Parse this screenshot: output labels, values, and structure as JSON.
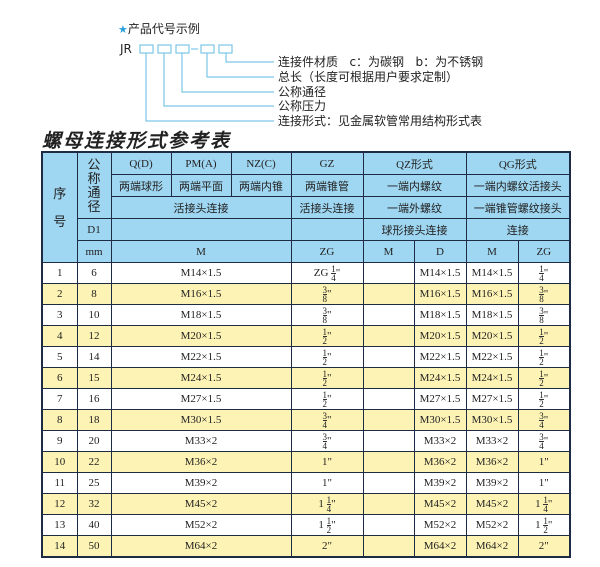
{
  "legend": {
    "title": "产品代号示例",
    "star_icon": "star-icon",
    "code_prefix": "JR",
    "code_dash": "-",
    "labels": [
      "连接件材质   c：为碳钢   b：为不锈钢",
      "总长（长度可根据用户要求定制）",
      "公称通径",
      "公称压力",
      "连接形式：见金属软管常用结构形式表"
    ]
  },
  "table_title": "螺母连接形式参考表",
  "header": {
    "seq": "序\n\n号",
    "dn": "公\n称\n通\n径",
    "r1": [
      "Q(D)",
      "PM(A)",
      "NZ(C)",
      "GZ",
      "QZ形式",
      "QG形式"
    ],
    "r2": [
      "两端球形",
      "两端平面",
      "两端内锥",
      "两端锥管",
      "一端内螺纹",
      "一端内螺纹活接头"
    ],
    "r3": [
      "活接头连接",
      "活接头连接",
      "一端外螺纹",
      "一端锥管螺纹接头"
    ],
    "r4": [
      "D1",
      "球形接头连接",
      "连接"
    ],
    "r5": [
      "mm",
      "M",
      "ZG",
      "M",
      "D",
      "M",
      "ZG"
    ]
  },
  "rows": [
    {
      "no": "1",
      "dn": "6",
      "m": "M14×1.5",
      "zg": {
        "pre": "ZG ",
        "num": "1",
        "den": "4"
      },
      "qz": "M14×1.5",
      "qgm": "M14×1.5",
      "qgzg": {
        "num": "1",
        "den": "4"
      }
    },
    {
      "no": "2",
      "dn": "8",
      "m": "M16×1.5",
      "zg": {
        "num": "3",
        "den": "8"
      },
      "qz": "M16×1.5",
      "qgm": "M16×1.5",
      "qgzg": {
        "num": "3",
        "den": "8"
      }
    },
    {
      "no": "3",
      "dn": "10",
      "m": "M18×1.5",
      "zg": {
        "num": "3",
        "den": "8"
      },
      "qz": "M18×1.5",
      "qgm": "M18×1.5",
      "qgzg": {
        "num": "3",
        "den": "8"
      }
    },
    {
      "no": "4",
      "dn": "12",
      "m": "M20×1.5",
      "zg": {
        "num": "1",
        "den": "2"
      },
      "qz": "M20×1.5",
      "qgm": "M20×1.5",
      "qgzg": {
        "num": "1",
        "den": "2"
      }
    },
    {
      "no": "5",
      "dn": "14",
      "m": "M22×1.5",
      "zg": {
        "num": "1",
        "den": "2"
      },
      "qz": "M22×1.5",
      "qgm": "M22×1.5",
      "qgzg": {
        "num": "1",
        "den": "2"
      }
    },
    {
      "no": "6",
      "dn": "15",
      "m": "M24×1.5",
      "zg": {
        "num": "1",
        "den": "2"
      },
      "qz": "M24×1.5",
      "qgm": "M24×1.5",
      "qgzg": {
        "num": "1",
        "den": "2"
      }
    },
    {
      "no": "7",
      "dn": "16",
      "m": "M27×1.5",
      "zg": {
        "num": "1",
        "den": "2"
      },
      "qz": "M27×1.5",
      "qgm": "M27×1.5",
      "qgzg": {
        "num": "1",
        "den": "2"
      }
    },
    {
      "no": "8",
      "dn": "18",
      "m": "M30×1.5",
      "zg": {
        "num": "3",
        "den": "4"
      },
      "qz": "M30×1.5",
      "qgm": "M30×1.5",
      "qgzg": {
        "num": "3",
        "den": "4"
      }
    },
    {
      "no": "9",
      "dn": "20",
      "m": "M33×2",
      "zg": {
        "num": "3",
        "den": "4"
      },
      "qz": "M33×2",
      "qgm": "M33×2",
      "qgzg": {
        "num": "3",
        "den": "4"
      }
    },
    {
      "no": "10",
      "dn": "22",
      "m": "M36×2",
      "zg": {
        "pre": "1"
      },
      "qz": "M36×2",
      "qgm": "M36×2",
      "qgzg": {
        "pre": "1"
      }
    },
    {
      "no": "11",
      "dn": "25",
      "m": "M39×2",
      "zg": {
        "pre": "1"
      },
      "qz": "M39×2",
      "qgm": "M39×2",
      "qgzg": {
        "pre": "1"
      }
    },
    {
      "no": "12",
      "dn": "32",
      "m": "M45×2",
      "zg": {
        "pre": "1 ",
        "num": "1",
        "den": "4"
      },
      "qz": "M45×2",
      "qgm": "M45×2",
      "qgzg": {
        "pre": "1 ",
        "num": "1",
        "den": "4"
      }
    },
    {
      "no": "13",
      "dn": "40",
      "m": "M52×2",
      "zg": {
        "pre": "1 ",
        "num": "1",
        "den": "2"
      },
      "qz": "M52×2",
      "qgm": "M52×2",
      "qgzg": {
        "pre": "1 ",
        "num": "1",
        "den": "2"
      }
    },
    {
      "no": "14",
      "dn": "50",
      "m": "M64×2",
      "zg": {
        "pre": "2"
      },
      "qz": "M64×2",
      "qgm": "M64×2",
      "qgzg": {
        "pre": "2"
      }
    }
  ],
  "inch_mark": "\"",
  "colors": {
    "header_bg": "#9fd6f1",
    "row_alt": "#fdf3b5",
    "border": "#1e2b45",
    "leader": "#7cc6e6"
  }
}
